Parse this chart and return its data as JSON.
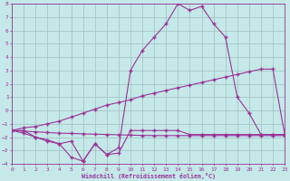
{
  "xlabel": "Windchill (Refroidissement éolien,°C)",
  "xlim": [
    0,
    23
  ],
  "ylim": [
    -4,
    8
  ],
  "xticks": [
    0,
    1,
    2,
    3,
    4,
    5,
    6,
    7,
    8,
    9,
    10,
    11,
    12,
    13,
    14,
    15,
    16,
    17,
    18,
    19,
    20,
    21,
    22,
    23
  ],
  "yticks": [
    -4,
    -3,
    -2,
    -1,
    0,
    1,
    2,
    3,
    4,
    5,
    6,
    7,
    8
  ],
  "bg": "#c5e8e8",
  "grid_color": "#a0bfbf",
  "lc": "#993399",
  "x": [
    0,
    1,
    2,
    3,
    4,
    5,
    6,
    7,
    8,
    9,
    10,
    11,
    12,
    13,
    14,
    15,
    16,
    17,
    18,
    19,
    20,
    21,
    22,
    23
  ],
  "y_main": [
    -1.5,
    -1.5,
    -2.0,
    -2.2,
    -2.5,
    -2.3,
    -3.8,
    -2.5,
    -3.3,
    -2.8,
    3.0,
    4.5,
    5.5,
    6.5,
    8.0,
    7.5,
    7.8,
    6.5,
    5.5,
    1.0,
    -0.2,
    -1.8,
    -1.8,
    -1.8
  ],
  "y_upper": [
    -1.5,
    -1.3,
    -1.2,
    -1.0,
    -0.8,
    -0.5,
    -0.2,
    0.1,
    0.4,
    0.6,
    0.8,
    1.1,
    1.3,
    1.5,
    1.7,
    1.9,
    2.1,
    2.3,
    2.5,
    2.7,
    2.9,
    3.1,
    3.1,
    -1.8
  ],
  "y_lower": [
    -1.5,
    -1.55,
    -1.6,
    -1.65,
    -1.7,
    -1.72,
    -1.75,
    -1.78,
    -1.8,
    -1.82,
    -1.85,
    -1.87,
    -1.88,
    -1.88,
    -1.88,
    -1.88,
    -1.88,
    -1.88,
    -1.88,
    -1.88,
    -1.88,
    -1.88,
    -1.88,
    -1.88
  ],
  "y_zigzag": [
    -1.5,
    -1.7,
    -2.0,
    -2.3,
    -2.5,
    -3.5,
    -3.8,
    -2.5,
    -3.3,
    -3.2,
    -1.5,
    -1.5,
    -1.5,
    -1.5,
    -1.5,
    -1.8,
    -1.8,
    -1.8,
    -1.8,
    -1.8,
    -1.8,
    -1.8,
    -1.8,
    -1.8
  ]
}
